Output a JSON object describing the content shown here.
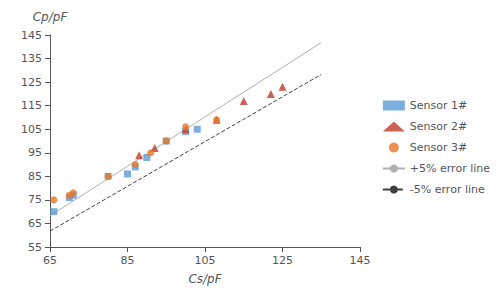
{
  "chart_data": {
    "type": "scatter",
    "xlabel": "Cs/pF",
    "ylabel": "Cp/pF",
    "xlim": [
      65,
      145
    ],
    "ylim": [
      55,
      145
    ],
    "xticks": [
      65,
      85,
      105,
      125,
      145
    ],
    "yticks": [
      55,
      65,
      75,
      85,
      95,
      105,
      115,
      125,
      135,
      145
    ],
    "grid": false,
    "legend": "right",
    "series": [
      {
        "name": "Sensor 1#",
        "type": "scatter",
        "marker": "square",
        "color": "#5B9BD5",
        "x": [
          66,
          70,
          71,
          80,
          85,
          87,
          90,
          95,
          100,
          103
        ],
        "values": [
          70,
          76,
          77,
          85,
          86,
          89,
          93,
          100,
          104,
          105
        ]
      },
      {
        "name": "Sensor 2#",
        "type": "scatter",
        "marker": "triangle",
        "color": "#C0392B",
        "x": [
          88,
          92,
          100,
          108,
          115,
          122,
          125
        ],
        "values": [
          94,
          97,
          105,
          109,
          117,
          120,
          123
        ]
      },
      {
        "name": "Sensor 3#",
        "type": "scatter",
        "marker": "circle",
        "color": "#E87722",
        "x": [
          66,
          70,
          71,
          80,
          87,
          91,
          95,
          100,
          108
        ],
        "values": [
          75,
          77,
          78,
          85,
          90,
          95,
          100,
          106,
          109
        ]
      },
      {
        "name": "+5% error line",
        "type": "line",
        "line_style": "solid",
        "color": "#B0B0B0",
        "x": [
          65,
          135
        ],
        "values": [
          68.25,
          141.75
        ]
      },
      {
        "name": "-5% error line",
        "type": "line",
        "line_style": "dashed",
        "color": "#404040",
        "x": [
          65,
          135
        ],
        "values": [
          61.75,
          128.25
        ]
      }
    ]
  }
}
